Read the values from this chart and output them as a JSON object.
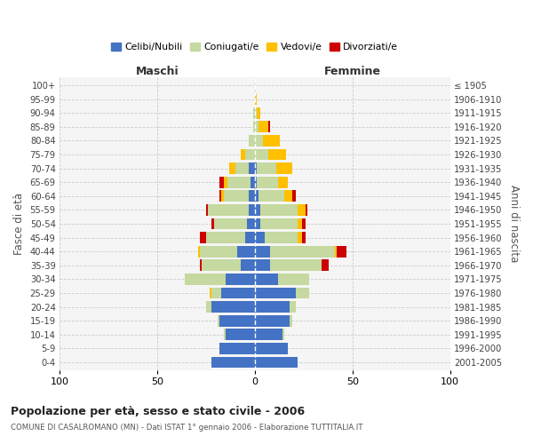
{
  "age_groups": [
    "0-4",
    "5-9",
    "10-14",
    "15-19",
    "20-24",
    "25-29",
    "30-34",
    "35-39",
    "40-44",
    "45-49",
    "50-54",
    "55-59",
    "60-64",
    "65-69",
    "70-74",
    "75-79",
    "80-84",
    "85-89",
    "90-94",
    "95-99",
    "100+"
  ],
  "birth_years": [
    "2001-2005",
    "1996-2000",
    "1991-1995",
    "1986-1990",
    "1981-1985",
    "1976-1980",
    "1971-1975",
    "1966-1970",
    "1961-1965",
    "1956-1960",
    "1951-1955",
    "1946-1950",
    "1941-1945",
    "1936-1940",
    "1931-1935",
    "1926-1930",
    "1921-1925",
    "1916-1920",
    "1911-1915",
    "1906-1910",
    "≤ 1905"
  ],
  "colors": {
    "celibe": "#4472C4",
    "coniugato": "#c5d9a0",
    "vedovo": "#ffc000",
    "divorziato": "#cc0000"
  },
  "maschi": {
    "celibe": [
      22,
      18,
      15,
      18,
      22,
      17,
      15,
      7,
      9,
      5,
      4,
      3,
      3,
      2,
      3,
      0,
      0,
      0,
      0,
      0,
      0
    ],
    "coniugato": [
      0,
      0,
      1,
      1,
      3,
      5,
      21,
      20,
      19,
      20,
      17,
      21,
      13,
      12,
      7,
      5,
      3,
      1,
      1,
      0,
      0
    ],
    "vedovo": [
      0,
      0,
      0,
      0,
      0,
      1,
      0,
      0,
      1,
      0,
      0,
      0,
      1,
      2,
      3,
      2,
      0,
      0,
      0,
      0,
      0
    ],
    "divorziato": [
      0,
      0,
      0,
      0,
      0,
      0,
      0,
      1,
      0,
      3,
      1,
      1,
      1,
      2,
      0,
      0,
      0,
      0,
      0,
      0,
      0
    ]
  },
  "femmine": {
    "nubile": [
      22,
      17,
      14,
      18,
      18,
      21,
      12,
      8,
      8,
      5,
      3,
      3,
      2,
      1,
      1,
      0,
      0,
      0,
      0,
      0,
      0
    ],
    "coniugata": [
      0,
      0,
      1,
      1,
      3,
      7,
      16,
      26,
      33,
      17,
      19,
      19,
      13,
      11,
      10,
      7,
      4,
      2,
      1,
      0,
      0
    ],
    "vedova": [
      0,
      0,
      0,
      0,
      0,
      0,
      0,
      0,
      1,
      2,
      2,
      4,
      4,
      5,
      8,
      9,
      9,
      5,
      2,
      1,
      0
    ],
    "divorziata": [
      0,
      0,
      0,
      0,
      0,
      0,
      0,
      4,
      5,
      2,
      2,
      1,
      2,
      0,
      0,
      0,
      0,
      1,
      0,
      0,
      0
    ]
  },
  "xlim": 100,
  "title": "Popolazione per età, sesso e stato civile - 2006",
  "subtitle": "COMUNE DI CASALROMANO (MN) - Dati ISTAT 1° gennaio 2006 - Elaborazione TUTTITALIA.IT",
  "xlabel_maschi": "Maschi",
  "xlabel_femmine": "Femmine",
  "ylabel_left": "Fasce di età",
  "ylabel_right": "Anni di nascita"
}
